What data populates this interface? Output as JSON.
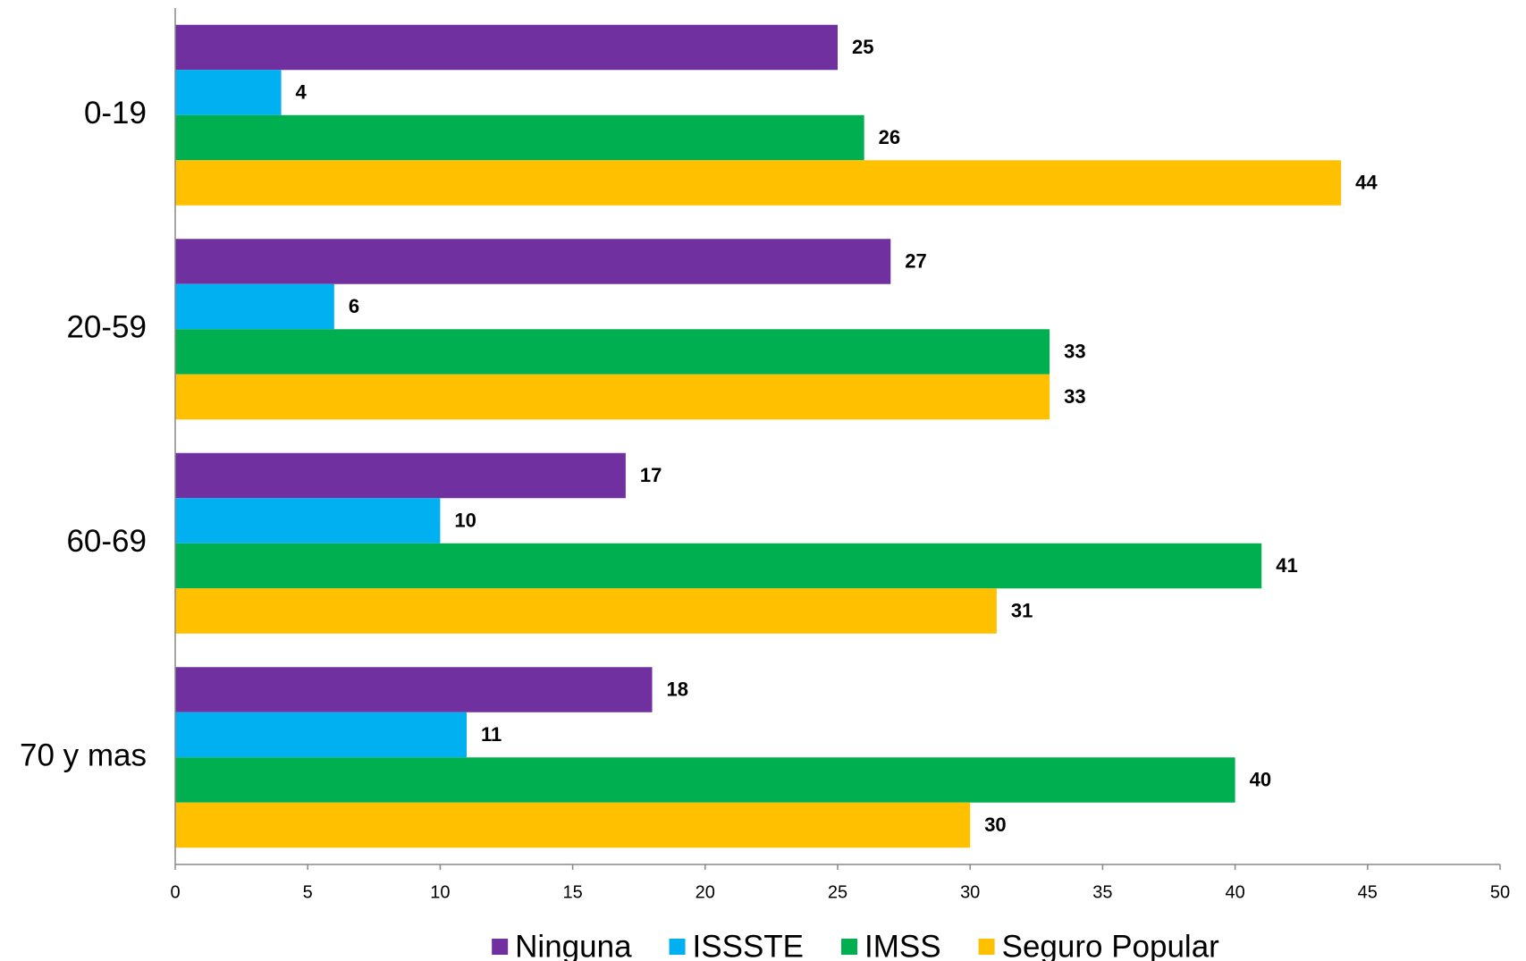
{
  "chart_data": {
    "type": "bar",
    "orientation": "horizontal",
    "categories": [
      "0-19",
      "20-59",
      "60-69",
      "70 y mas"
    ],
    "series": [
      {
        "name": "Ninguna",
        "color": "#7030a0",
        "values": [
          25,
          27,
          17,
          18
        ]
      },
      {
        "name": "ISSSTE",
        "color": "#00b0f0",
        "values": [
          4,
          6,
          10,
          11
        ]
      },
      {
        "name": "IMSS",
        "color": "#00b050",
        "values": [
          26,
          33,
          41,
          40
        ]
      },
      {
        "name": "Seguro Popular",
        "color": "#ffc000",
        "values": [
          44,
          33,
          31,
          30
        ]
      }
    ],
    "xlim": [
      0,
      50
    ],
    "xticks": [
      0,
      5,
      10,
      15,
      20,
      25,
      30,
      35,
      40,
      45,
      50
    ],
    "grid": false,
    "legend": "bottom"
  }
}
